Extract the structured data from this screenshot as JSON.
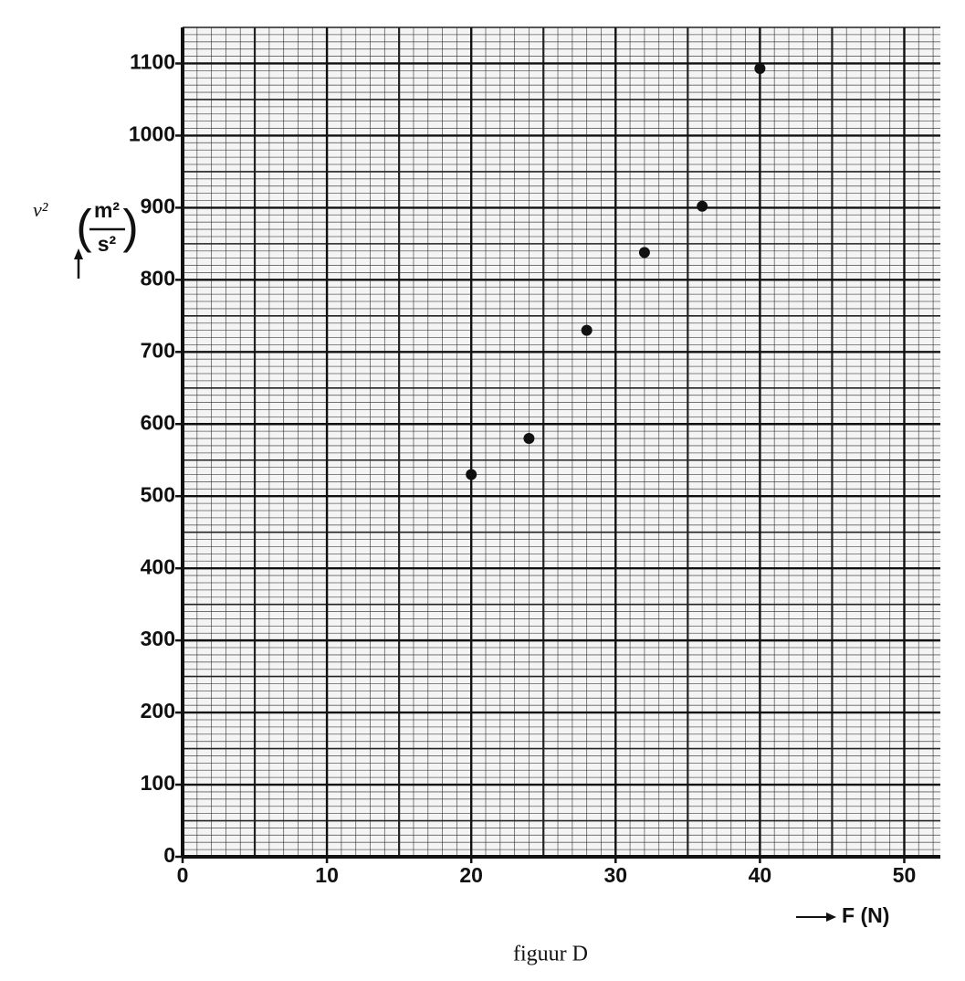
{
  "chart_data": {
    "type": "scatter",
    "ylabel": {
      "symbol": "v²",
      "unit_numerator": "m²",
      "unit_denominator": "s²"
    },
    "xlabel": "F (N)",
    "caption": "figuur D",
    "x": [
      20,
      24,
      28,
      32,
      36,
      40
    ],
    "values": [
      530,
      580,
      730,
      838,
      902,
      1093
    ],
    "color": "#111111",
    "xlim": [
      0,
      52.5
    ],
    "ylim": [
      0,
      1150
    ],
    "xticks": [
      0,
      10,
      20,
      30,
      40,
      50
    ],
    "yticks": [
      0,
      100,
      200,
      300,
      400,
      500,
      600,
      700,
      800,
      900,
      1000,
      1100
    ],
    "grid": true
  }
}
